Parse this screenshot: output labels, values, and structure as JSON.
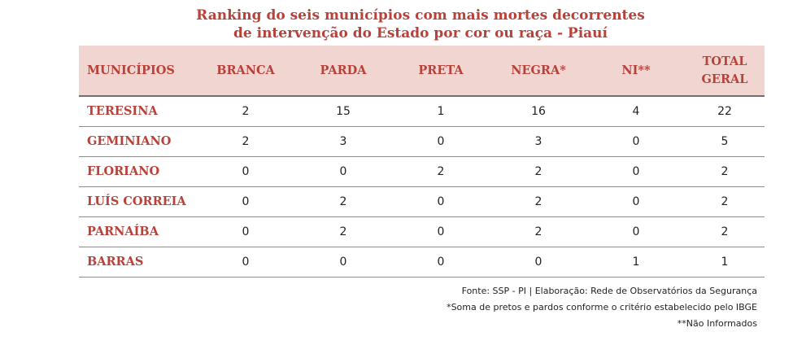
{
  "title": {
    "line1": "Ranking do seis municípios com mais mortes decorrentes",
    "line2": "de intervenção do Estado por cor  ou raça - Piauí"
  },
  "table": {
    "headers": [
      "MUNICÍPIOS",
      "BRANCA",
      "PARDA",
      "PRETA",
      "NEGRA*",
      "NI**",
      "TOTAL GERAL"
    ],
    "total_header": {
      "line1": "TOTAL",
      "line2": "GERAL"
    },
    "rows": [
      [
        "TERESINA",
        "2",
        "15",
        "1",
        "16",
        "4",
        "22"
      ],
      [
        "GEMINIANO",
        "2",
        "3",
        "0",
        "3",
        "0",
        "5"
      ],
      [
        "FLORIANO",
        "0",
        "0",
        "2",
        "2",
        "0",
        "2"
      ],
      [
        "LUÍS CORREIA",
        "0",
        "2",
        "0",
        "2",
        "0",
        "2"
      ],
      [
        "PARNAÍBA",
        "0",
        "2",
        "0",
        "2",
        "0",
        "2"
      ],
      [
        "BARRAS",
        "0",
        "0",
        "0",
        "0",
        "1",
        "1"
      ]
    ]
  },
  "notes": {
    "source": "Fonte: SSP - PI | Elaboração: Rede de Observatórios da Segurança",
    "note1": "*Soma de pretos e pardos conforme o critério estabelecido pelo IBGE",
    "note2": "**Não Informados"
  },
  "colors": {
    "accent": "#b8413a",
    "header_bg": "#f1d5d1",
    "text": "#222222",
    "rule": "#8c8c8c"
  }
}
